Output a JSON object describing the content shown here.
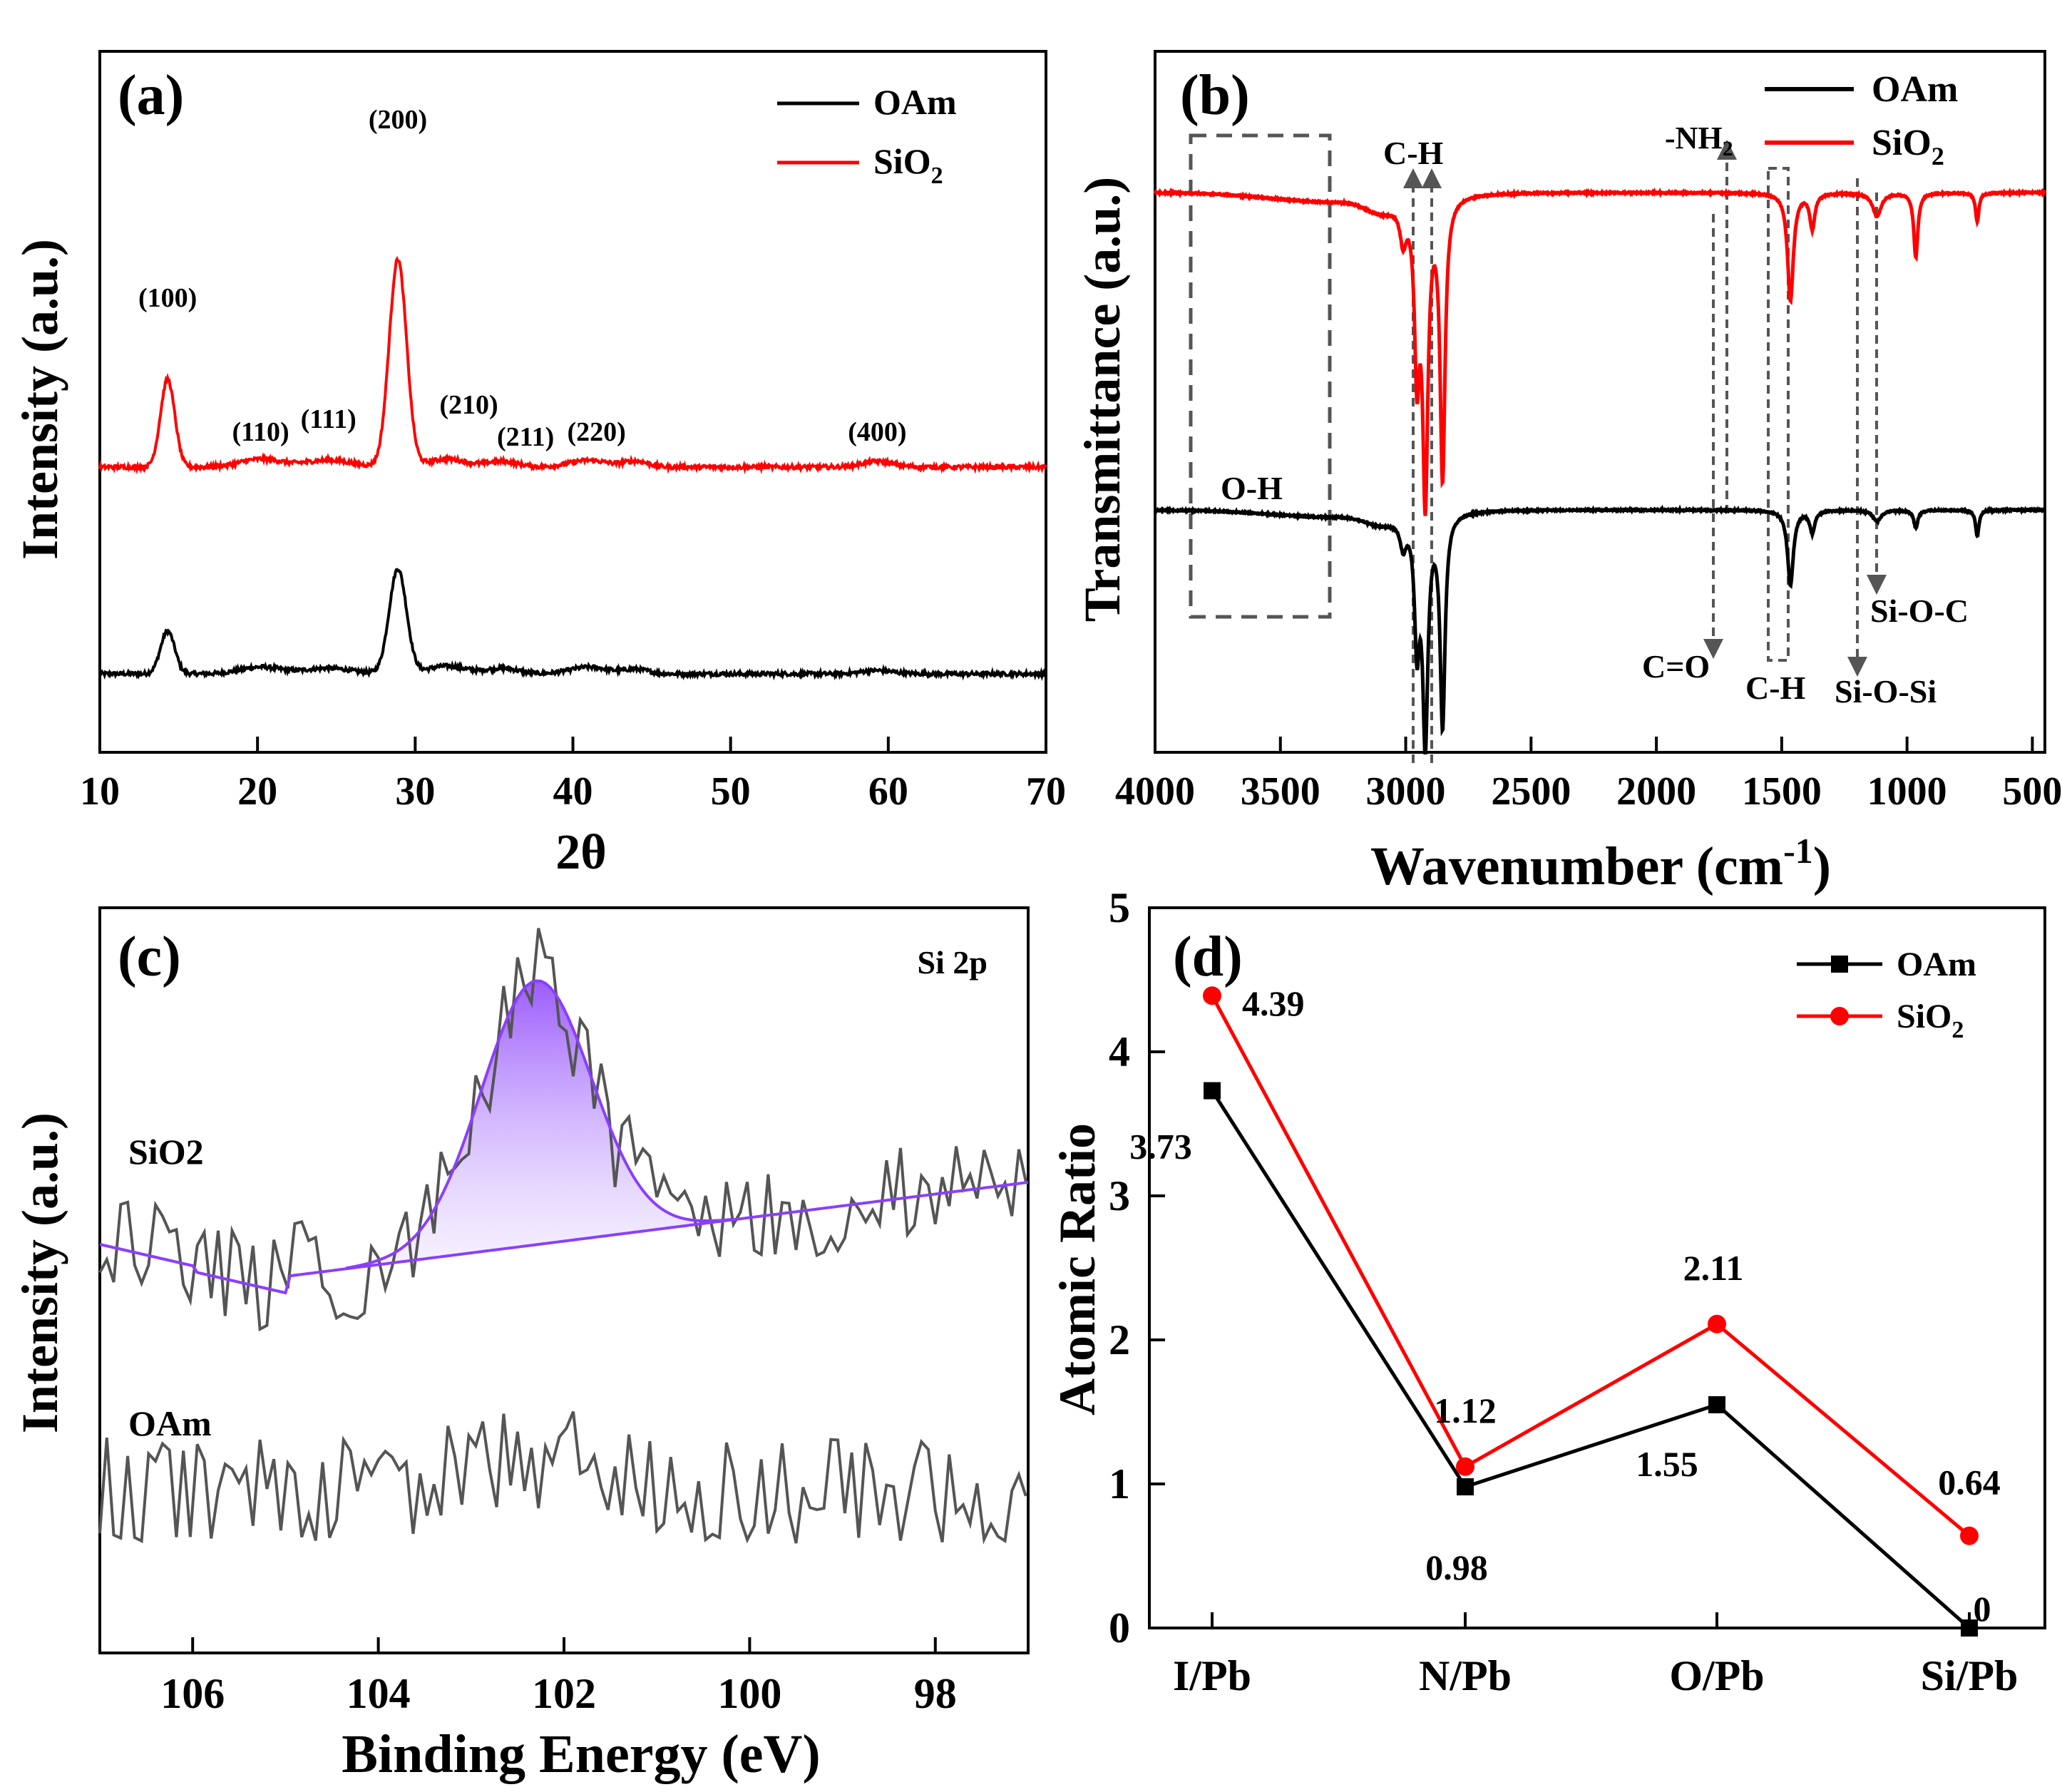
{
  "colors": {
    "oam": "#000000",
    "sio2": "#ff0000",
    "fit": "#8a3ffc",
    "raw": "#555555",
    "box": "#444444"
  },
  "chart_data": [
    {
      "type": "line",
      "panel": "(a)",
      "xlabel": "2θ",
      "ylabel": "Intensity (a.u.)",
      "xlim": [
        10,
        70
      ],
      "xticks": [
        "10",
        "20",
        "30",
        "40",
        "50",
        "60",
        "70"
      ],
      "legend": {
        "placement": "top-right",
        "entries": [
          {
            "name": "OAm",
            "color": "#000000"
          },
          {
            "name": "SiO",
            "sub": "2",
            "color": "#ff0000"
          }
        ]
      },
      "peak_labels": [
        {
          "text": "(100)",
          "x": 14.3
        },
        {
          "text": "(110)",
          "x": 20.2
        },
        {
          "text": "(111)",
          "x": 24.5
        },
        {
          "text": "(200)",
          "x": 28.9
        },
        {
          "text": "(210)",
          "x": 33.4
        },
        {
          "text": "(211)",
          "x": 37.0
        },
        {
          "text": "(220)",
          "x": 41.5
        },
        {
          "text": "(400)",
          "x": 59.3
        }
      ],
      "peaks_common": [
        {
          "center": 14.3,
          "width": 0.45
        },
        {
          "center": 20.2,
          "width": 1.3
        },
        {
          "center": 24.5,
          "width": 1.5
        },
        {
          "center": 28.9,
          "width": 0.55
        },
        {
          "center": 32.0,
          "width": 1.2
        },
        {
          "center": 35.5,
          "width": 1.0
        },
        {
          "center": 41.0,
          "width": 1.2
        },
        {
          "center": 44.0,
          "width": 0.8
        },
        {
          "center": 59.3,
          "width": 1.0
        }
      ],
      "series": [
        {
          "name": "OAm",
          "color": "#000000",
          "baseline": 0.0,
          "heights": [
            0.38,
            0.06,
            0.05,
            0.93,
            0.07,
            0.05,
            0.06,
            0.04,
            0.03
          ]
        },
        {
          "name": "SiO2",
          "color": "#ff0000",
          "baseline": 1.0,
          "heights": [
            0.77,
            0.07,
            0.06,
            1.82,
            0.07,
            0.05,
            0.06,
            0.05,
            0.05
          ]
        }
      ]
    },
    {
      "type": "line",
      "panel": "(b)",
      "xlabel": "Wavenumber (cm",
      "xlabel_sup": "-1",
      "xlabel_end": ")",
      "ylabel": "Transmittance (a.u.)",
      "xlim": [
        4000,
        450
      ],
      "xticks": [
        "4000",
        "3500",
        "3000",
        "2500",
        "2000",
        "1500",
        "1000",
        "500"
      ],
      "legend": {
        "placement": "top-right",
        "entries": [
          {
            "name": "OAm",
            "color": "#000000"
          },
          {
            "name": "SiO",
            "sub": "2",
            "color": "#ff0000"
          }
        ]
      },
      "band_labels": [
        "O-H",
        "C-H",
        "-NH",
        "C=O",
        "C-H",
        "Si-O-Si",
        "Si-O-C"
      ],
      "dips_common": [
        {
          "center": 3010,
          "width": 15
        },
        {
          "center": 2955,
          "width": 12
        },
        {
          "center": 2922,
          "width": 13
        },
        {
          "center": 2853,
          "width": 12
        },
        {
          "center": 1465,
          "width": 14
        },
        {
          "center": 1378,
          "width": 12
        },
        {
          "center": 1120,
          "width": 20
        },
        {
          "center": 965,
          "width": 10
        },
        {
          "center": 720,
          "width": 8
        }
      ],
      "series": [
        {
          "name": "OAm",
          "color": "#000000",
          "depths": [
            0.12,
            0.55,
            1.0,
            0.95,
            0.34,
            0.1,
            0.05,
            0.08,
            0.12
          ]
        },
        {
          "name": "SiO2",
          "color": "#ff0000",
          "depths": [
            0.12,
            0.55,
            1.0,
            0.95,
            0.37,
            0.12,
            0.08,
            0.22,
            0.1
          ]
        }
      ]
    },
    {
      "type": "line",
      "panel": "(c)",
      "title": "Si 2p",
      "xlabel": "Binding Energy (eV)",
      "ylabel": "Intensity (a.u.)",
      "xlim": [
        107,
        97
      ],
      "xticks": [
        "106",
        "104",
        "102",
        "100",
        "98"
      ],
      "series_labels": [
        "SiO2",
        "OAm"
      ],
      "fit_peak": {
        "center": 102.3,
        "fwhm": 1.4,
        "height": 1.0
      },
      "series": [
        {
          "name": "SiO2",
          "color": "#555555"
        },
        {
          "name": "OAm",
          "color": "#555555"
        }
      ]
    },
    {
      "type": "line",
      "panel": "(d)",
      "ylabel": "Atomic Ratio",
      "ylim": [
        0,
        5
      ],
      "yticks": [
        "0",
        "1",
        "2",
        "3",
        "4",
        "5"
      ],
      "categories": [
        "I/Pb",
        "N/Pb",
        "O/Pb",
        "Si/Pb"
      ],
      "legend": {
        "placement": "top-right",
        "entries": [
          {
            "name": "OAm",
            "color": "#000000"
          },
          {
            "name": "SiO",
            "sub": "2",
            "color": "#ff0000"
          }
        ]
      },
      "series": [
        {
          "name": "OAm",
          "color": "#000000",
          "marker": "square",
          "values": [
            3.73,
            0.98,
            1.55,
            0
          ],
          "labels": [
            "3.73",
            "0.98",
            "1.55",
            "0"
          ]
        },
        {
          "name": "SiO2",
          "color": "#ff0000",
          "marker": "circle",
          "values": [
            4.39,
            1.12,
            2.11,
            0.64
          ],
          "labels": [
            "4.39",
            "1.12",
            "2.11",
            "0.64"
          ]
        }
      ]
    }
  ]
}
